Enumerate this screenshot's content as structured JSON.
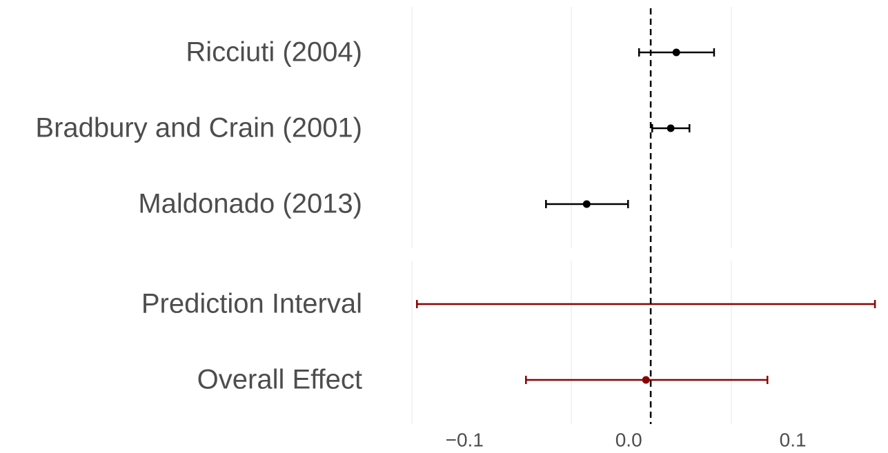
{
  "chart_data": {
    "type": "forest",
    "categories": [
      "Ricciuti (2004)",
      "Bradbury and Crain (2001)",
      "Maldonado (2013)",
      "Prediction Interval",
      "Overall Effect"
    ],
    "values": [
      0.029,
      0.0256,
      -0.0256,
      null,
      0.0105
    ],
    "lower": [
      0.0063,
      0.0143,
      -0.0504,
      -0.129,
      -0.0626
    ],
    "upper": [
      0.052,
      0.037,
      -0.0004,
      0.15,
      0.0845
    ],
    "colors": [
      "#000000",
      "#000000",
      "#000000",
      "#8b0000",
      "#8b0000"
    ],
    "reference_line": 0.0134,
    "xlim": [
      -0.135,
      0.155
    ],
    "xticks": [
      {
        "value": -0.1,
        "label": "−0.1"
      },
      {
        "value": 0,
        "label": "0.0"
      },
      0.1
    ]
  }
}
